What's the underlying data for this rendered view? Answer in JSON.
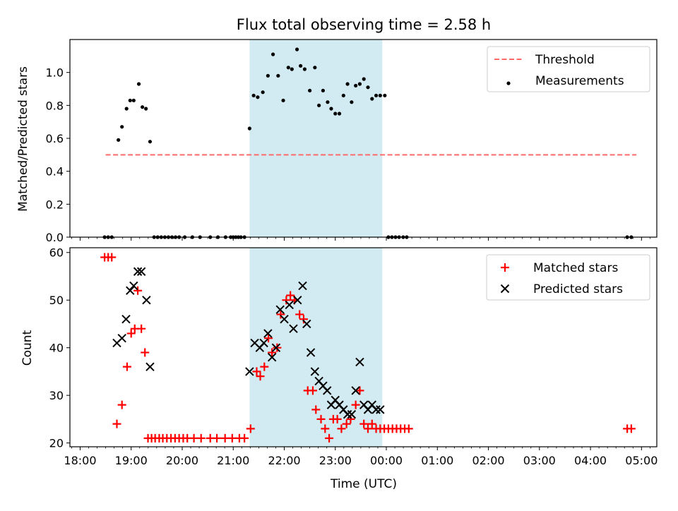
{
  "chart_data": [
    {
      "type": "scatter",
      "title": "Flux total observing time = 2.58 h",
      "xlabel": "",
      "ylabel": "Matched/Predicted stars",
      "ylim": [
        0,
        1.2
      ],
      "yticks": [
        "0.0",
        "0.2",
        "0.4",
        "0.6",
        "0.8",
        "1.0"
      ],
      "xlim": [
        -0.2,
        11.3
      ],
      "shaded_span": [
        3.32,
        5.92
      ],
      "shade_color": "#add8e6",
      "legend": {
        "position": "top-right",
        "entries": [
          "Threshold",
          "Measurements"
        ]
      },
      "series": [
        {
          "name": "Threshold",
          "style": "dashed-line",
          "color": "#ff6a6a",
          "x": [
            0.5,
            10.9
          ],
          "y": [
            0.5,
            0.5
          ]
        },
        {
          "name": "Measurements",
          "style": "dot",
          "color": "#000000",
          "x": [
            0.48,
            0.55,
            0.62,
            0.75,
            0.82,
            0.91,
            0.98,
            1.05,
            1.15,
            1.22,
            1.29,
            1.37,
            1.45,
            1.52,
            1.59,
            1.66,
            1.73,
            1.8,
            1.87,
            1.94,
            2.05,
            2.2,
            2.35,
            2.55,
            2.7,
            2.85,
            2.95,
            3.0,
            3.05,
            3.1,
            3.15,
            3.22,
            3.32,
            3.4,
            3.48,
            3.58,
            3.68,
            3.78,
            3.88,
            3.98,
            4.08,
            4.15,
            4.25,
            4.32,
            4.4,
            4.5,
            4.6,
            4.68,
            4.76,
            4.85,
            4.92,
            5.0,
            5.08,
            5.16,
            5.24,
            5.32,
            5.4,
            5.48,
            5.56,
            5.64,
            5.72,
            5.8,
            5.88,
            5.97,
            6.04,
            6.11,
            6.18,
            6.25,
            6.33,
            6.4,
            10.72,
            10.8
          ],
          "y": [
            0,
            0,
            0,
            0.59,
            0.67,
            0.78,
            0.83,
            0.83,
            0.93,
            0.79,
            0.78,
            0.58,
            0,
            0,
            0,
            0,
            0,
            0,
            0,
            0,
            0,
            0,
            0,
            0,
            0,
            0,
            0,
            0,
            0,
            0,
            0,
            0,
            0.66,
            0.86,
            0.85,
            0.88,
            0.98,
            1.11,
            0.98,
            0.83,
            1.03,
            1.02,
            1.14,
            1.04,
            1.02,
            0.89,
            1.03,
            0.8,
            0.89,
            0.82,
            0.78,
            0.75,
            0.75,
            0.86,
            0.93,
            0.82,
            0.92,
            0.93,
            0.96,
            0.91,
            0.84,
            0.86,
            0.86,
            0.86,
            0,
            0,
            0,
            0,
            0,
            0,
            0,
            0
          ]
        }
      ]
    },
    {
      "type": "scatter",
      "title": "",
      "xlabel": "Time (UTC)",
      "ylabel": "Count",
      "ylim": [
        19.2,
        61
      ],
      "yticks": [
        "20",
        "30",
        "40",
        "50",
        "60"
      ],
      "xlim": [
        -0.2,
        11.3
      ],
      "xticks": [
        "18:00",
        "19:00",
        "20:00",
        "21:00",
        "22:00",
        "23:00",
        "00:00",
        "01:00",
        "02:00",
        "03:00",
        "04:00",
        "05:00"
      ],
      "shaded_span": [
        3.32,
        5.92
      ],
      "shade_color": "#add8e6",
      "legend": {
        "position": "top-right",
        "entries": [
          "Matched stars",
          "Predicted stars"
        ]
      },
      "series": [
        {
          "name": "Matched stars",
          "style": "plus",
          "color": "#ff0000",
          "x": [
            0.48,
            0.55,
            0.62,
            0.72,
            0.82,
            0.92,
            1.0,
            1.07,
            1.13,
            1.2,
            1.27,
            1.33,
            1.4,
            1.47,
            1.55,
            1.62,
            1.7,
            1.78,
            1.86,
            1.94,
            2.02,
            2.1,
            2.23,
            2.37,
            2.55,
            2.68,
            2.84,
            2.98,
            3.12,
            3.22,
            3.34,
            3.46,
            3.53,
            3.61,
            3.69,
            3.76,
            3.86,
            3.93,
            4.04,
            4.12,
            4.2,
            4.3,
            4.38,
            4.46,
            4.56,
            4.62,
            4.72,
            4.8,
            4.88,
            4.96,
            5.04,
            5.12,
            5.22,
            5.3,
            5.4,
            5.48,
            5.56,
            5.64,
            5.72,
            5.8,
            5.88,
            5.96,
            6.04,
            6.12,
            6.2,
            6.28,
            6.36,
            6.44,
            10.72,
            10.8
          ],
          "y": [
            59,
            59,
            59,
            24,
            28,
            36,
            43,
            44,
            52,
            44,
            39,
            21,
            21,
            21,
            21,
            21,
            21,
            21,
            21,
            21,
            21,
            21,
            21,
            21,
            21,
            21,
            21,
            21,
            21,
            21,
            23,
            35,
            34,
            36,
            42,
            39,
            40,
            47,
            50,
            51,
            50,
            47,
            46,
            31,
            31,
            27,
            25,
            23,
            21,
            25,
            25,
            23,
            24,
            25,
            28,
            31,
            24,
            23,
            24,
            23,
            23,
            23,
            23,
            23,
            23,
            23,
            23,
            23,
            23,
            23
          ]
        },
        {
          "name": "Predicted stars",
          "style": "x",
          "color": "#000000",
          "x": [
            0.72,
            0.82,
            0.9,
            0.98,
            1.05,
            1.13,
            1.2,
            1.3,
            1.37,
            3.32,
            3.42,
            3.52,
            3.6,
            3.68,
            3.76,
            3.84,
            3.92,
            4.0,
            4.1,
            4.18,
            4.26,
            4.36,
            4.44,
            4.52,
            4.6,
            4.68,
            4.76,
            4.84,
            4.92,
            5.0,
            5.08,
            5.16,
            5.24,
            5.32,
            5.4,
            5.48,
            5.56,
            5.64,
            5.72,
            5.8,
            5.88
          ],
          "y": [
            41,
            42,
            46,
            52,
            53,
            56,
            56,
            50,
            36,
            35,
            41,
            40,
            41,
            43,
            38,
            40,
            48,
            46,
            49,
            44,
            50,
            53,
            45,
            39,
            35,
            33,
            32,
            31,
            28,
            29,
            28,
            27,
            26,
            26,
            31,
            37,
            28,
            27,
            28,
            27,
            27
          ]
        }
      ]
    }
  ]
}
